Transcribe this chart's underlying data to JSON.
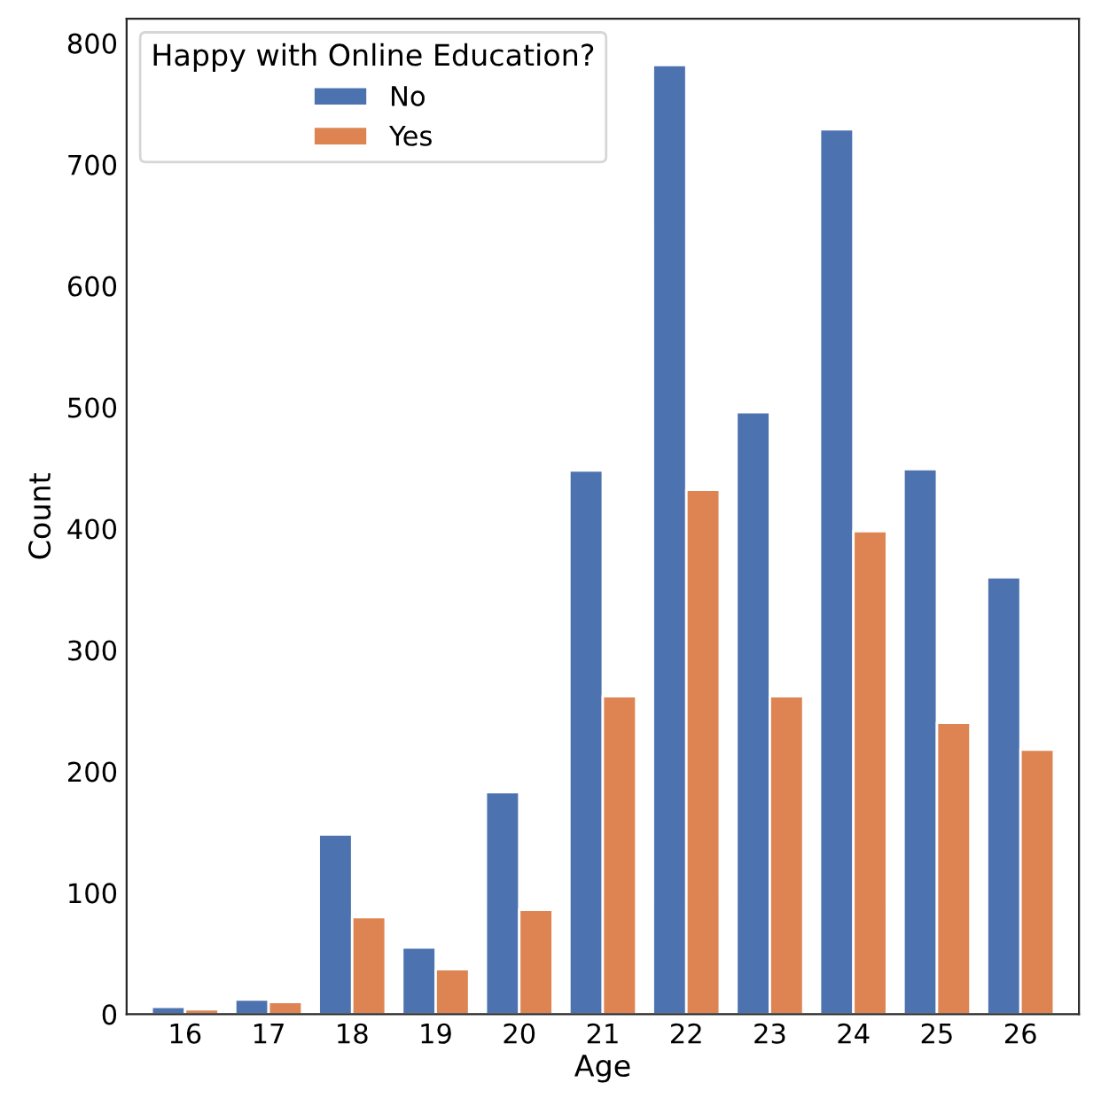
{
  "chart_data": {
    "type": "bar",
    "xlabel": "Age",
    "ylabel": "Count",
    "legend_title": "Happy with Online Education?",
    "categories": [
      "16",
      "17",
      "18",
      "19",
      "20",
      "21",
      "22",
      "23",
      "24",
      "25",
      "26"
    ],
    "series": [
      {
        "name": "No",
        "color": "#4c72b0",
        "values": [
          6,
          12,
          148,
          55,
          183,
          448,
          782,
          496,
          729,
          449,
          360
        ]
      },
      {
        "name": "Yes",
        "color": "#dd8452",
        "values": [
          4,
          10,
          80,
          37,
          86,
          262,
          432,
          262,
          398,
          240,
          218
        ]
      }
    ],
    "ylim": [
      0,
      820
    ],
    "yticks": [
      0,
      100,
      200,
      300,
      400,
      500,
      600,
      700,
      800
    ],
    "grid": false,
    "legend": "top left"
  }
}
